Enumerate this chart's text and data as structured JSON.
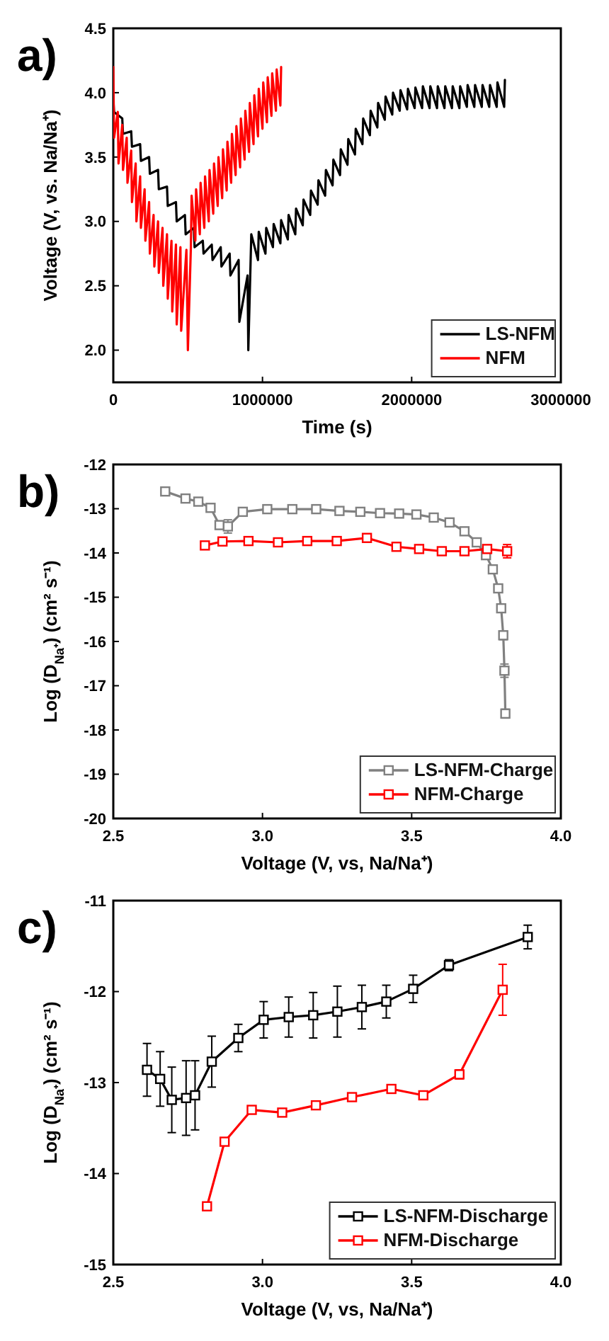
{
  "chart_data": [
    {
      "type": "line",
      "annotations": [
        "a)"
      ],
      "xlabel": "Time (s)",
      "ylabel": "Voltage (V, vs. Na/Na⁺)",
      "xlim": [
        0,
        3000000
      ],
      "xticks": [
        0,
        1000000,
        2000000,
        3000000
      ],
      "ylim": [
        1.75,
        4.5
      ],
      "yticks": [
        {
          "value": 2,
          "label": "2.0"
        },
        {
          "value": 2.5,
          "label": "2.5"
        },
        {
          "value": 3,
          "label": "3.0"
        },
        {
          "value": 3.5,
          "label": "3.5"
        },
        {
          "value": 4,
          "label": "4.0"
        },
        {
          "value": 4.5,
          "label": "4.5"
        }
      ],
      "legend": "bottom right",
      "marker": "none",
      "line_style": "solid",
      "grid": false,
      "series": [
        {
          "name": "LS-NFM",
          "color": "#000000",
          "x": [
            0,
            5000,
            60000,
            65000,
            120000,
            125000,
            180000,
            185000,
            240000,
            245000,
            300000,
            305000,
            360000,
            365000,
            420000,
            425000,
            480000,
            485000,
            540000,
            545000,
            600000,
            605000,
            660000,
            665000,
            720000,
            725000,
            780000,
            785000,
            840000,
            845000,
            900000,
            905000,
            920000,
            925000,
            970000,
            975000,
            1020000,
            1025000,
            1070000,
            1075000,
            1120000,
            1125000,
            1170000,
            1175000,
            1220000,
            1225000,
            1270000,
            1275000,
            1320000,
            1325000,
            1370000,
            1375000,
            1420000,
            1425000,
            1470000,
            1475000,
            1520000,
            1525000,
            1570000,
            1575000,
            1620000,
            1625000,
            1670000,
            1675000,
            1720000,
            1725000,
            1770000,
            1775000,
            1820000,
            1825000,
            1870000,
            1875000,
            1920000,
            1925000,
            1970000,
            1975000,
            2020000,
            2025000,
            2070000,
            2075000,
            2120000,
            2125000,
            2170000,
            2175000,
            2220000,
            2225000,
            2270000,
            2275000,
            2320000,
            2325000,
            2370000,
            2375000,
            2420000,
            2425000,
            2470000,
            2475000,
            2520000,
            2525000,
            2570000,
            2575000,
            2620000,
            2625000
          ],
          "values": [
            3.95,
            3.85,
            3.8,
            3.68,
            3.7,
            3.58,
            3.6,
            3.47,
            3.5,
            3.37,
            3.4,
            3.25,
            3.27,
            3.12,
            3.15,
            3.0,
            3.05,
            2.9,
            2.95,
            2.8,
            2.85,
            2.75,
            2.82,
            2.7,
            2.8,
            2.65,
            2.75,
            2.58,
            2.7,
            2.22,
            2.58,
            2.0,
            2.67,
            2.9,
            2.7,
            2.92,
            2.75,
            2.95,
            2.8,
            2.98,
            2.83,
            3.01,
            2.86,
            3.05,
            2.9,
            3.1,
            2.97,
            3.17,
            3.05,
            3.24,
            3.13,
            3.32,
            3.2,
            3.4,
            3.28,
            3.48,
            3.36,
            3.56,
            3.44,
            3.64,
            3.52,
            3.72,
            3.6,
            3.8,
            3.67,
            3.86,
            3.73,
            3.92,
            3.79,
            3.97,
            3.83,
            4.0,
            3.86,
            4.02,
            3.87,
            4.03,
            3.88,
            4.04,
            3.88,
            4.05,
            3.88,
            4.05,
            3.88,
            4.05,
            3.88,
            4.05,
            3.88,
            4.05,
            3.88,
            4.05,
            3.89,
            4.06,
            3.89,
            4.06,
            3.89,
            4.06,
            3.89,
            4.06,
            3.89,
            4.08,
            3.89,
            4.1
          ]
        },
        {
          "name": "NFM",
          "color": "#ff0000",
          "x": [
            0,
            5000,
            30000,
            35000,
            60000,
            65000,
            90000,
            95000,
            120000,
            125000,
            150000,
            155000,
            180000,
            185000,
            210000,
            215000,
            240000,
            245000,
            270000,
            275000,
            300000,
            305000,
            330000,
            335000,
            360000,
            365000,
            390000,
            395000,
            420000,
            425000,
            450000,
            455000,
            490000,
            500000,
            520000,
            525000,
            550000,
            555000,
            580000,
            585000,
            610000,
            615000,
            640000,
            645000,
            670000,
            675000,
            700000,
            705000,
            730000,
            735000,
            760000,
            765000,
            790000,
            795000,
            820000,
            825000,
            850000,
            855000,
            880000,
            885000,
            910000,
            915000,
            940000,
            945000,
            970000,
            975000,
            1000000,
            1005000,
            1030000,
            1035000,
            1060000,
            1065000,
            1090000,
            1095000,
            1120000,
            1125000
          ],
          "values": [
            4.2,
            3.65,
            3.85,
            3.45,
            3.75,
            3.4,
            3.65,
            3.3,
            3.55,
            3.15,
            3.45,
            3.0,
            3.35,
            2.95,
            3.25,
            2.85,
            3.15,
            2.75,
            3.05,
            2.65,
            3.0,
            2.6,
            2.95,
            2.5,
            2.9,
            2.4,
            2.85,
            2.3,
            2.82,
            2.2,
            2.8,
            2.15,
            2.78,
            2.0,
            2.8,
            3.2,
            2.85,
            3.25,
            2.9,
            3.3,
            2.95,
            3.35,
            3.0,
            3.4,
            3.06,
            3.45,
            3.12,
            3.5,
            3.18,
            3.56,
            3.24,
            3.62,
            3.3,
            3.68,
            3.36,
            3.74,
            3.42,
            3.8,
            3.48,
            3.86,
            3.54,
            3.92,
            3.6,
            3.98,
            3.66,
            4.03,
            3.72,
            4.08,
            3.77,
            4.12,
            3.82,
            4.15,
            3.86,
            4.18,
            3.9,
            4.2
          ]
        }
      ]
    },
    {
      "type": "line",
      "annotations": [
        "b)"
      ],
      "xlabel": "Voltage (V, vs, Na/Na⁺)",
      "ylabel": "Log (D$_{Na⁺}$) (cm² s⁻¹)",
      "xlim": [
        2.5,
        4.0
      ],
      "xticks": [
        {
          "value": 2.5,
          "label": "2.5"
        },
        {
          "value": 3,
          "label": "3.0"
        },
        {
          "value": 3.5,
          "label": "3.5"
        },
        {
          "value": 4,
          "label": "4.0"
        }
      ],
      "ylim": [
        -20,
        -12
      ],
      "yticks": [
        -20,
        -19,
        -18,
        -17,
        -16,
        -15,
        -14,
        -13,
        -12
      ],
      "legend": "bottom right",
      "marker": "square",
      "line_style": "solid",
      "grid": false,
      "series": [
        {
          "name": "LS-NFM-Charge",
          "color": "#808080",
          "x": [
            2.674,
            2.742,
            2.785,
            2.826,
            2.856,
            2.884,
            2.934,
            3.016,
            3.1,
            3.18,
            3.258,
            3.328,
            3.394,
            3.458,
            3.516,
            3.574,
            3.627,
            3.677,
            3.718,
            3.749,
            3.772,
            3.79,
            3.8,
            3.807,
            3.811,
            3.814
          ],
          "values": [
            -12.61,
            -12.77,
            -12.84,
            -12.98,
            -13.37,
            -13.4,
            -13.07,
            -13.01,
            -13.01,
            -13.01,
            -13.05,
            -13.07,
            -13.1,
            -13.11,
            -13.13,
            -13.2,
            -13.31,
            -13.51,
            -13.76,
            -14.05,
            -14.37,
            -14.8,
            -15.25,
            -15.86,
            -16.66,
            -17.63
          ],
          "errors": [
            null,
            null,
            null,
            null,
            null,
            0.15,
            null,
            null,
            null,
            null,
            null,
            null,
            null,
            null,
            null,
            null,
            null,
            null,
            null,
            null,
            null,
            null,
            null,
            0.1,
            0.15,
            0.1
          ]
        },
        {
          "name": "NFM-Charge",
          "color": "#ff0000",
          "x": [
            2.807,
            2.866,
            2.953,
            3.052,
            3.15,
            3.249,
            3.35,
            3.449,
            3.525,
            3.601,
            3.677,
            3.753,
            3.82
          ],
          "values": [
            -13.83,
            -13.74,
            -13.73,
            -13.76,
            -13.73,
            -13.73,
            -13.66,
            -13.86,
            -13.91,
            -13.96,
            -13.96,
            -13.91,
            -13.96
          ],
          "errors": [
            null,
            null,
            null,
            null,
            null,
            null,
            null,
            null,
            null,
            null,
            null,
            null,
            0.15
          ]
        }
      ]
    },
    {
      "type": "line",
      "annotations": [
        "c)"
      ],
      "xlabel": "Voltage (V, vs, Na/Na⁺)",
      "ylabel": "Log (D$_{Na⁺}$) (cm² s⁻¹)",
      "xlim": [
        2.5,
        4.0
      ],
      "xticks": [
        {
          "value": 2.5,
          "label": "2.5"
        },
        {
          "value": 3,
          "label": "3.0"
        },
        {
          "value": 3.5,
          "label": "3.5"
        },
        {
          "value": 4,
          "label": "4.0"
        }
      ],
      "ylim": [
        -15,
        -11
      ],
      "yticks": [
        -15,
        -14,
        -13,
        -12,
        -11
      ],
      "legend": "bottom right",
      "marker": "square",
      "line_style": "solid",
      "grid": false,
      "series": [
        {
          "name": "LS-NFM-Discharge",
          "color": "#000000",
          "x": [
            2.613,
            2.657,
            2.696,
            2.744,
            2.774,
            2.83,
            2.919,
            3.004,
            3.088,
            3.17,
            3.251,
            3.333,
            3.415,
            3.505,
            3.625,
            3.889
          ],
          "values": [
            -12.86,
            -12.96,
            -13.19,
            -13.17,
            -13.14,
            -12.77,
            -12.51,
            -12.31,
            -12.28,
            -12.26,
            -12.22,
            -12.17,
            -12.11,
            -11.97,
            -11.71,
            -11.4
          ],
          "errors": [
            0.29,
            0.3,
            0.36,
            0.41,
            0.38,
            0.28,
            0.15,
            0.2,
            0.22,
            0.25,
            0.28,
            0.24,
            0.18,
            0.15,
            0.06,
            0.13
          ]
        },
        {
          "name": "NFM-Discharge",
          "color": "#ff0000",
          "x": [
            2.814,
            2.873,
            2.964,
            3.066,
            3.179,
            3.3,
            3.432,
            3.539,
            3.66,
            3.805
          ],
          "values": [
            -14.36,
            -13.65,
            -13.3,
            -13.33,
            -13.25,
            -13.16,
            -13.07,
            -13.14,
            -12.91,
            -11.98
          ],
          "errors": [
            null,
            null,
            null,
            null,
            null,
            null,
            null,
            null,
            0.05,
            0.28
          ]
        }
      ]
    }
  ]
}
